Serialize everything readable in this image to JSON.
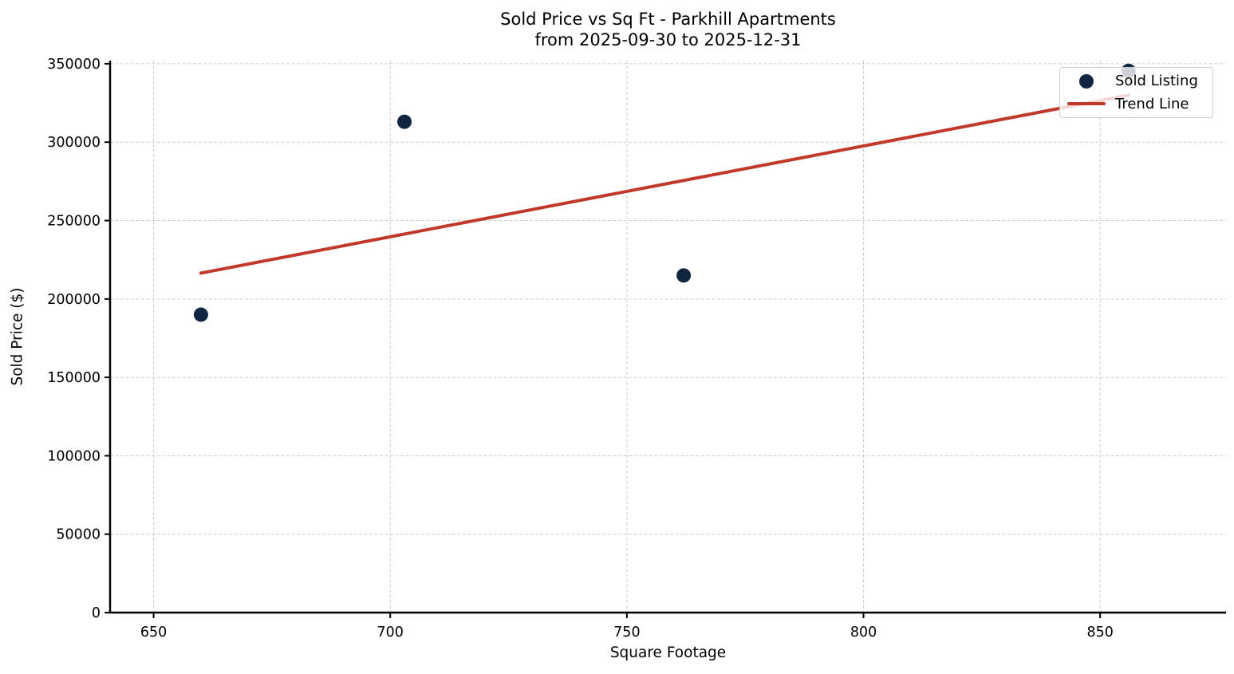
{
  "chart_data": {
    "type": "scatter",
    "title": "Sold Price vs Sq Ft - Parkhill Apartments",
    "subtitle": "from 2025-09-30 to 2025-12-31",
    "xlabel": "Square Footage",
    "ylabel": "Sold Price ($)",
    "xlim": [
      640.8,
      876.6
    ],
    "ylim": [
      0,
      352000
    ],
    "xticks": [
      650,
      700,
      750,
      800,
      850
    ],
    "yticks": [
      0,
      50000,
      100000,
      150000,
      200000,
      250000,
      300000,
      350000
    ],
    "grid": true,
    "grid_style": "dashed",
    "legend_position": "upper right",
    "series": [
      {
        "name": "Sold Listing",
        "type": "scatter",
        "points": [
          {
            "x": 660,
            "y": 190000
          },
          {
            "x": 703,
            "y": 313000
          },
          {
            "x": 762,
            "y": 215000
          },
          {
            "x": 856,
            "y": 345500
          }
        ]
      },
      {
        "name": "Trend Line",
        "type": "line",
        "points": [
          {
            "x": 660,
            "y": 216500
          },
          {
            "x": 856,
            "y": 330000
          }
        ]
      }
    ],
    "colors": {
      "point": "#0f2540",
      "trend": "#c0392b",
      "grid": "#cdcdcd",
      "spine": "#000000",
      "text": "#000000"
    }
  }
}
